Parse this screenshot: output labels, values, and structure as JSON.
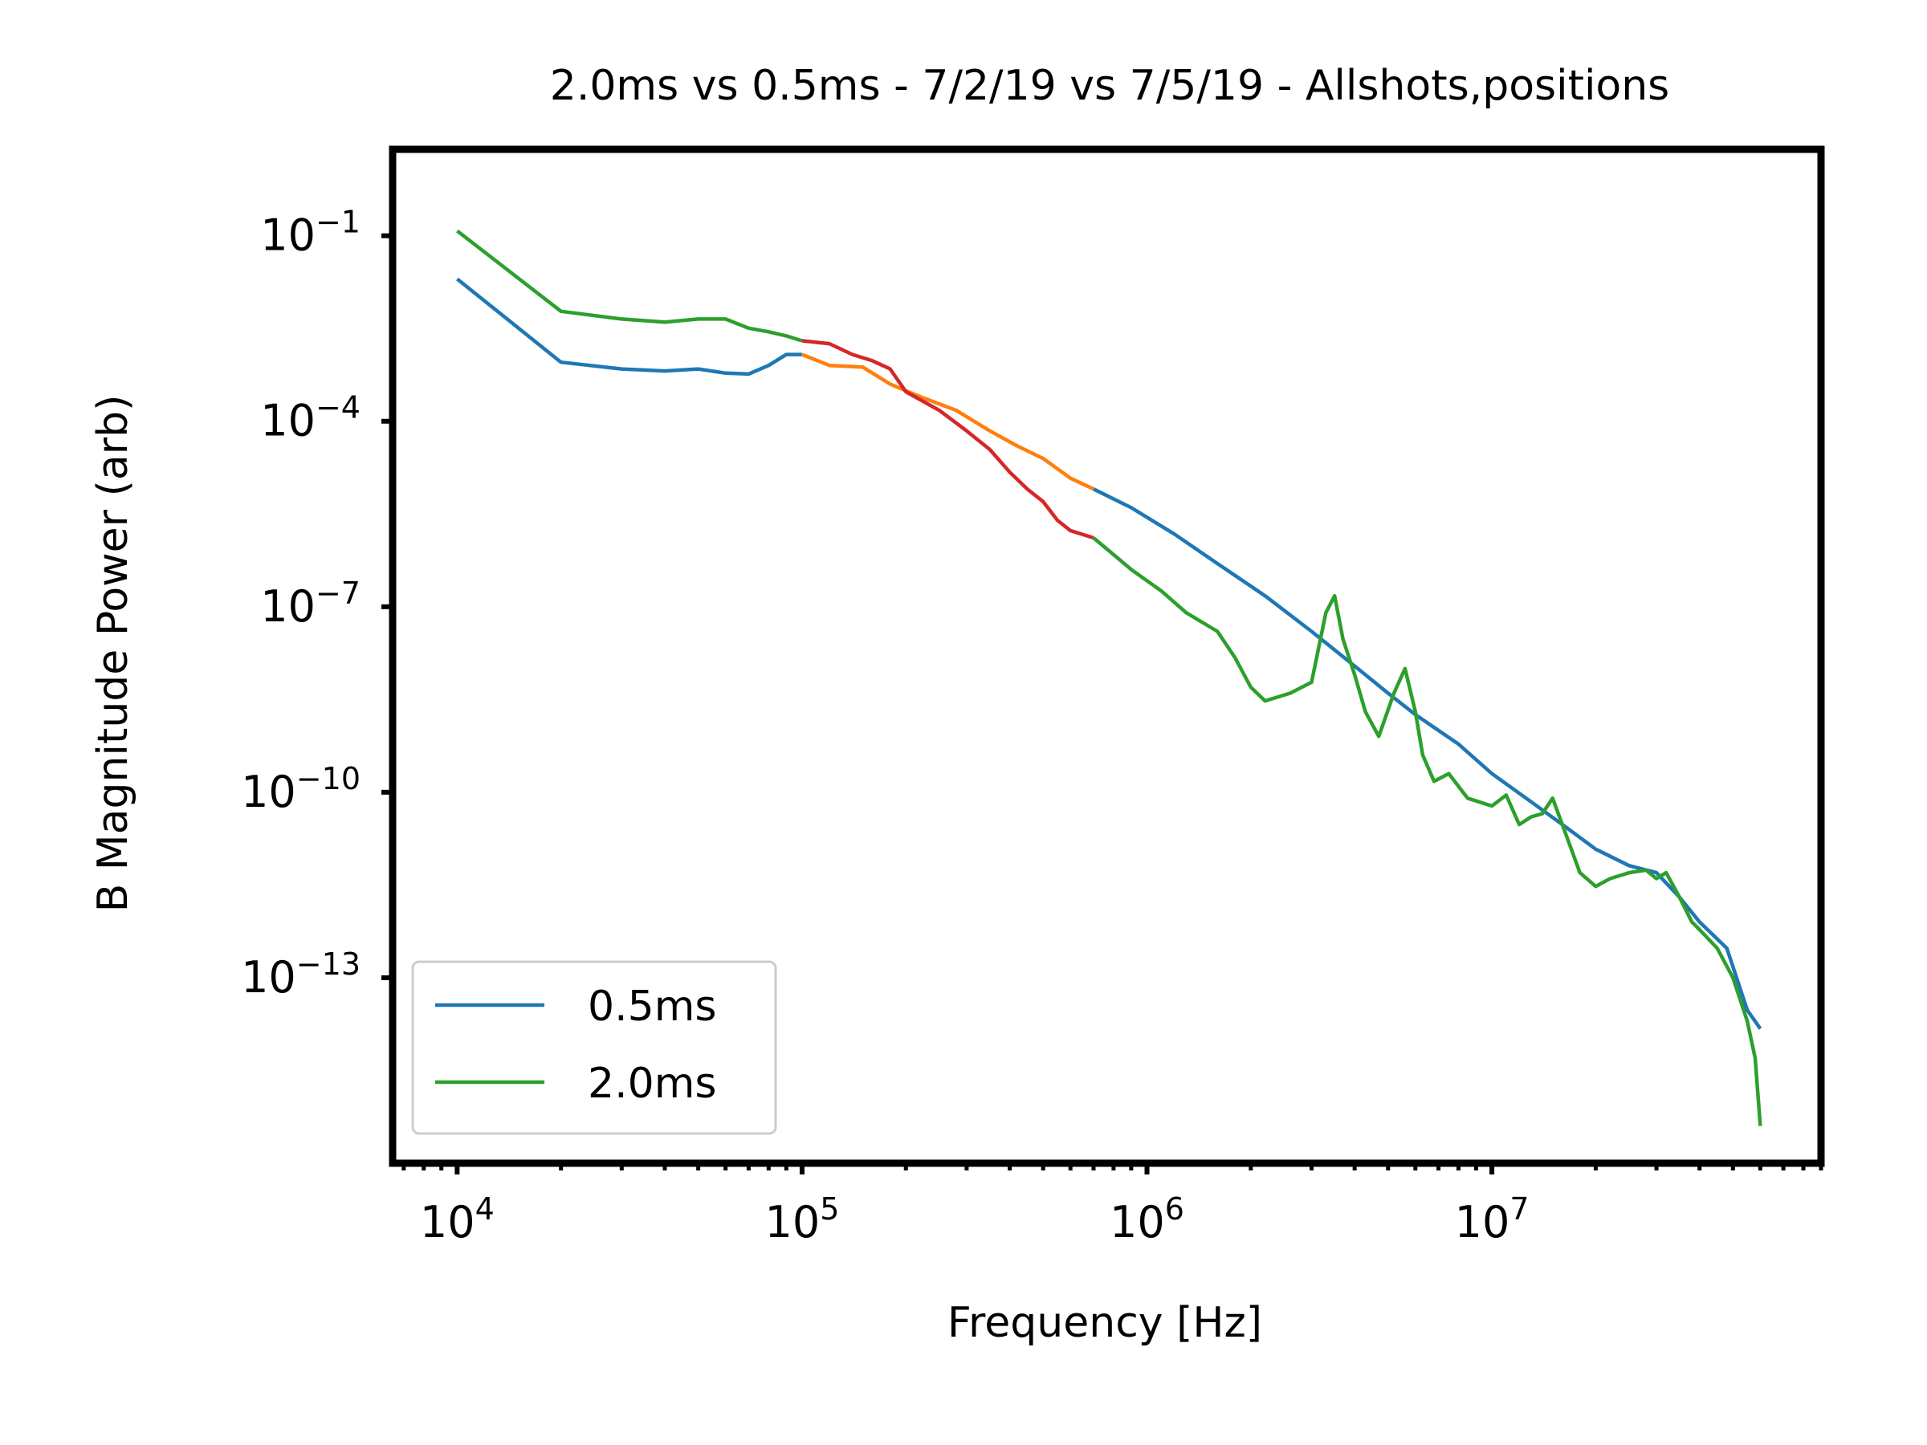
{
  "chart_data": {
    "type": "line",
    "title": "2.0ms vs 0.5ms - 7/2/19 vs 7/5/19 - Allshots,positions",
    "xlabel": "Frequency [Hz]",
    "ylabel": "B Magnitude Power (arb)",
    "x_scale": "log",
    "y_scale": "log",
    "xlim": [
      6500,
      90000000
    ],
    "ylim": [
      1e-16,
      2.5
    ],
    "grid": false,
    "legend_position": "lower-left",
    "x_ticks": [
      {
        "value": 10000,
        "base": "10",
        "exp": "4"
      },
      {
        "value": 100000,
        "base": "10",
        "exp": "5"
      },
      {
        "value": 1000000,
        "base": "10",
        "exp": "6"
      },
      {
        "value": 10000000,
        "base": "10",
        "exp": "7"
      }
    ],
    "y_ticks": [
      {
        "value": 0.1,
        "base": "10",
        "exp": "−1"
      },
      {
        "value": 0.0001,
        "base": "10",
        "exp": "−4"
      },
      {
        "value": 1e-07,
        "base": "10",
        "exp": "−7"
      },
      {
        "value": 1e-10,
        "base": "10",
        "exp": "−10"
      },
      {
        "value": 1e-13,
        "base": "10",
        "exp": "−13"
      }
    ],
    "legend": [
      {
        "label": "0.5ms",
        "color": "#1f77b4"
      },
      {
        "label": "2.0ms",
        "color": "#2ca02c"
      }
    ],
    "series": [
      {
        "name": "0.5ms",
        "color": "#1f77b4",
        "points": [
          [
            10000,
            0.02
          ],
          [
            20000,
            0.0009
          ],
          [
            30000,
            0.0007
          ],
          [
            40000,
            0.00065
          ],
          [
            50000,
            0.0007
          ],
          [
            60000,
            0.0006
          ],
          [
            70000,
            0.00058
          ],
          [
            80000,
            0.0008
          ],
          [
            90000,
            0.0012
          ],
          [
            100000,
            0.0012
          ]
        ]
      },
      {
        "color": "#ff7f0e",
        "points": [
          [
            100000,
            0.0012
          ],
          [
            120000,
            0.0008
          ],
          [
            150000,
            0.00075
          ],
          [
            180000,
            0.0004
          ],
          [
            220000,
            0.00025
          ],
          [
            280000,
            0.00015
          ],
          [
            350000,
            7e-05
          ],
          [
            420000,
            4e-05
          ],
          [
            500000,
            2.5e-05
          ],
          [
            600000,
            1.2e-05
          ],
          [
            700000,
            8e-06
          ]
        ]
      },
      {
        "color": "#1f77b4",
        "points": [
          [
            700000,
            8e-06
          ],
          [
            900000,
            4e-06
          ],
          [
            1200000,
            1.5e-06
          ],
          [
            1600000,
            5e-07
          ],
          [
            2200000,
            1.5e-07
          ],
          [
            3000000,
            4e-08
          ],
          [
            4000000,
            1.1e-08
          ],
          [
            5000000,
            4e-09
          ],
          [
            6000000,
            1.8e-09
          ],
          [
            8000000,
            6e-10
          ],
          [
            10000000,
            2e-10
          ],
          [
            13000000,
            7e-11
          ],
          [
            16000000,
            3e-11
          ],
          [
            20000000,
            1.2e-11
          ],
          [
            25000000,
            6.5e-12
          ],
          [
            30000000,
            5e-12
          ],
          [
            35000000,
            2e-12
          ],
          [
            40000000,
            8e-13
          ],
          [
            48000000,
            3e-13
          ],
          [
            55000000,
            3e-14
          ],
          [
            60000000,
            1.5e-14
          ]
        ]
      },
      {
        "name": "2.0ms",
        "color": "#2ca02c",
        "points": [
          [
            10000,
            0.12
          ],
          [
            20000,
            0.006
          ],
          [
            30000,
            0.0045
          ],
          [
            40000,
            0.004
          ],
          [
            50000,
            0.0045
          ],
          [
            60000,
            0.0045
          ],
          [
            70000,
            0.0032
          ],
          [
            80000,
            0.0028
          ],
          [
            90000,
            0.0024
          ],
          [
            100000,
            0.002
          ]
        ]
      },
      {
        "color": "#d62728",
        "points": [
          [
            100000,
            0.002
          ],
          [
            120000,
            0.0018
          ],
          [
            140000,
            0.0012
          ],
          [
            160000,
            0.00095
          ],
          [
            180000,
            0.0007
          ],
          [
            200000,
            0.0003
          ],
          [
            250000,
            0.00015
          ],
          [
            300000,
            7e-05
          ],
          [
            350000,
            3.5e-05
          ],
          [
            400000,
            1.5e-05
          ],
          [
            450000,
            8e-06
          ],
          [
            500000,
            5e-06
          ],
          [
            550000,
            2.5e-06
          ],
          [
            600000,
            1.7e-06
          ],
          [
            700000,
            1.3e-06
          ]
        ]
      },
      {
        "color": "#2ca02c",
        "points": [
          [
            700000,
            1.3e-06
          ],
          [
            900000,
            4e-07
          ],
          [
            1100000,
            1.8e-07
          ],
          [
            1300000,
            8e-08
          ],
          [
            1600000,
            4e-08
          ],
          [
            1800000,
            1.5e-08
          ],
          [
            2000000,
            5e-09
          ],
          [
            2200000,
            3e-09
          ],
          [
            2600000,
            4e-09
          ],
          [
            3000000,
            6e-09
          ],
          [
            3300000,
            8e-08
          ],
          [
            3500000,
            1.5e-07
          ],
          [
            3700000,
            3e-08
          ],
          [
            4000000,
            8e-09
          ],
          [
            4300000,
            2e-09
          ],
          [
            4700000,
            8e-10
          ],
          [
            5200000,
            4e-09
          ],
          [
            5600000,
            1e-08
          ],
          [
            6000000,
            2e-09
          ],
          [
            6300000,
            4e-10
          ],
          [
            6800000,
            1.5e-10
          ],
          [
            7500000,
            2e-10
          ],
          [
            8500000,
            8e-11
          ],
          [
            10000000,
            6e-11
          ],
          [
            11000000,
            9e-11
          ],
          [
            12000000,
            3e-11
          ],
          [
            13000000,
            4e-11
          ],
          [
            14000000,
            4.5e-11
          ],
          [
            15000000,
            8e-11
          ],
          [
            16000000,
            3e-11
          ],
          [
            18000000,
            5e-12
          ],
          [
            20000000,
            3e-12
          ],
          [
            22000000,
            4e-12
          ],
          [
            25000000,
            5e-12
          ],
          [
            28000000,
            5.5e-12
          ],
          [
            30000000,
            4e-12
          ],
          [
            32000000,
            5e-12
          ],
          [
            35000000,
            2e-12
          ],
          [
            38000000,
            8e-13
          ],
          [
            40000000,
            6e-13
          ],
          [
            45000000,
            3e-13
          ],
          [
            50000000,
            1e-13
          ],
          [
            55000000,
            2e-14
          ],
          [
            58000000,
            5e-15
          ],
          [
            60000000,
            4e-16
          ]
        ]
      }
    ]
  }
}
